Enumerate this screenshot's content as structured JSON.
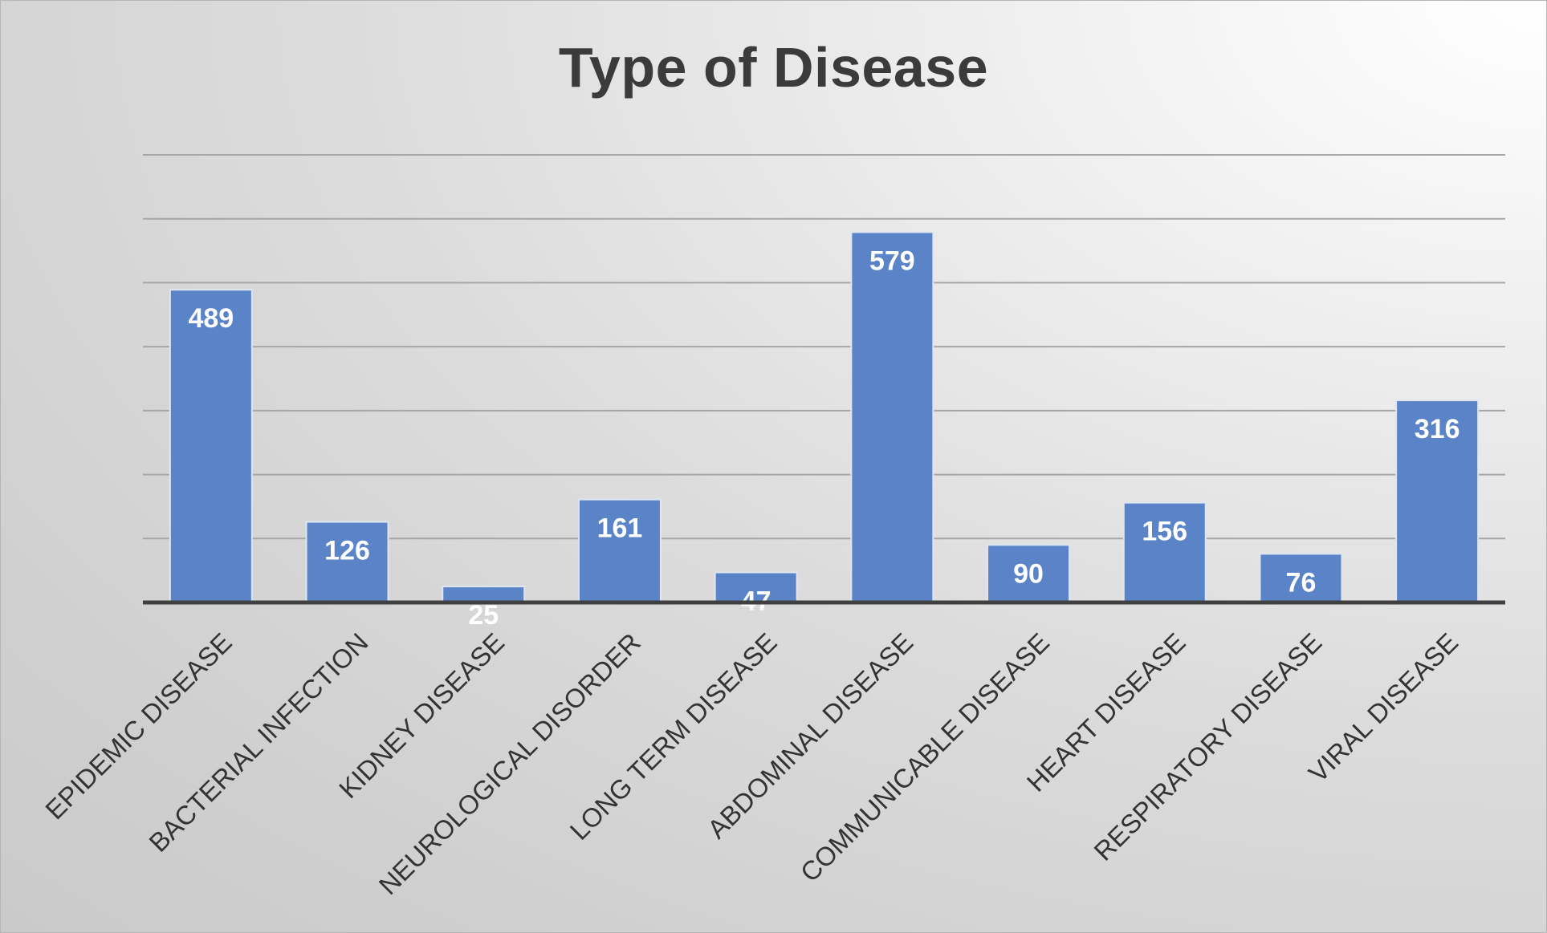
{
  "chart_data": {
    "type": "bar",
    "title": "Type of Disease",
    "xlabel": "",
    "ylabel": "",
    "categories": [
      "EPIDEMIC DISEASE",
      "BACTERIAL INFECTION",
      "KIDNEY DISEASE",
      "NEUROLOGICAL DISORDER",
      "LONG TERM DISEASE",
      "ABDOMINAL DISEASE",
      "COMMUNICABLE DISEASE",
      "HEART DISEASE",
      "RESPIRATORY DISEASE",
      "VIRAL DISEASE"
    ],
    "values": [
      489,
      126,
      25,
      161,
      47,
      579,
      90,
      156,
      76,
      316
    ],
    "ylim": [
      0,
      700
    ],
    "grid": true,
    "legend": "none",
    "bar_color": "#5b84c8",
    "label_color": "#ffffff"
  }
}
